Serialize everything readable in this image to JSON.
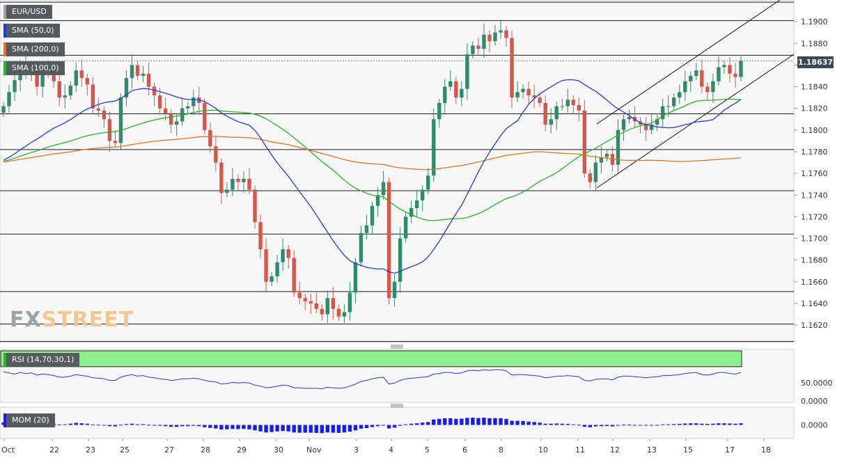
{
  "chart_data": {
    "type": "candlestick",
    "symbol": "EUR/USD",
    "indicators": [
      {
        "name": "SMA (50,0)",
        "color": "#1f3cd6"
      },
      {
        "name": "SMA (200,0)",
        "color": "#e8731f"
      },
      {
        "name": "SMA (100,0)",
        "color": "#26b526"
      }
    ],
    "rsi_label": "RSI (14,70,30,1)",
    "rsi_value_label": "50.0000",
    "rsi_zero_label": "0.0000",
    "mom_label": "MOM (20)",
    "mom_zero_label": "0.0000",
    "current_price": "1.18637",
    "price_range": [
      1.1604,
      1.192
    ],
    "price_ticks": [
      "1.1900",
      "1.1880",
      "1.1860",
      "1.1840",
      "1.1820",
      "1.1800",
      "1.1780",
      "1.1760",
      "1.1740",
      "1.1720",
      "1.1700",
      "1.1680",
      "1.1660",
      "1.1640",
      "1.1620"
    ],
    "horizontal_levels": [
      1.1918,
      1.1901,
      1.1869,
      1.1815,
      1.1782,
      1.1744,
      1.1704,
      1.1651,
      1.1621,
      1.1605
    ],
    "x_labels": [
      "Oct",
      "22",
      "23",
      "25",
      "27",
      "28",
      "29",
      "30",
      "Nov",
      "3",
      "4",
      "5",
      "6",
      "8",
      "10",
      "11",
      "12",
      "13",
      "15",
      "17",
      "18"
    ],
    "logo": {
      "part1": "FX",
      "part2": "STREET"
    },
    "colors": {
      "bull": "#2f8a6e",
      "bear": "#d6564a",
      "sma50": "#1f3cd6",
      "sma200": "#e8731f",
      "sma100": "#26b526",
      "rsi_over": "#8cf08c",
      "rsi_under": "#f58484",
      "mom": "#1a1ee0"
    },
    "closes": [
      1.1822,
      1.1835,
      1.1846,
      1.1861,
      1.1851,
      1.1853,
      1.184,
      1.1855,
      1.1852,
      1.1845,
      1.183,
      1.1832,
      1.1841,
      1.1855,
      1.1848,
      1.1842,
      1.182,
      1.1818,
      1.181,
      1.179,
      1.1788,
      1.183,
      1.1848,
      1.186,
      1.185,
      1.1852,
      1.184,
      1.1832,
      1.182,
      1.1815,
      1.1805,
      1.1808,
      1.182,
      1.1822,
      1.183,
      1.1825,
      1.18,
      1.1785,
      1.177,
      1.1742,
      1.1745,
      1.1755,
      1.1752,
      1.1755,
      1.1745,
      1.1715,
      1.169,
      1.166,
      1.1665,
      1.1678,
      1.169,
      1.1682,
      1.165,
      1.1645,
      1.1642,
      1.164,
      1.1635,
      1.163,
      1.1645,
      1.1635,
      1.1628,
      1.1632,
      1.165,
      1.1678,
      1.1705,
      1.1712,
      1.173,
      1.174,
      1.1752,
      1.1645,
      1.166,
      1.17,
      1.172,
      1.1728,
      1.1735,
      1.1745,
      1.1758,
      1.181,
      1.1825,
      1.184,
      1.1845,
      1.183,
      1.1838,
      1.187,
      1.1878,
      1.1875,
      1.1888,
      1.1882,
      1.189,
      1.1892,
      1.1885,
      1.183,
      1.1835,
      1.1838,
      1.1832,
      1.183,
      1.1825,
      1.1805,
      1.181,
      1.1822,
      1.1822,
      1.1828,
      1.1823,
      1.1818,
      1.176,
      1.1752,
      1.177,
      1.1775,
      1.1778,
      1.1768,
      1.18,
      1.181,
      1.1812,
      1.1808,
      1.1805,
      1.18,
      1.1805,
      1.181,
      1.1822,
      1.1822,
      1.183,
      1.1835,
      1.1845,
      1.185,
      1.1855,
      1.184,
      1.1835,
      1.1845,
      1.1858,
      1.186,
      1.1852,
      1.1849,
      1.1864
    ],
    "rsi": [
      68,
      66,
      64,
      67,
      65,
      66,
      62,
      64,
      63,
      61,
      58,
      58,
      60,
      63,
      61,
      60,
      57,
      56,
      55,
      52,
      52,
      58,
      61,
      63,
      60,
      61,
      58,
      57,
      55,
      54,
      52,
      53,
      55,
      55,
      56,
      55,
      52,
      50,
      49,
      45,
      46,
      48,
      47,
      48,
      47,
      43,
      41,
      38,
      39,
      41,
      43,
      42,
      38,
      38,
      37,
      37,
      37,
      36,
      39,
      38,
      37,
      38,
      41,
      45,
      50,
      52,
      55,
      57,
      58,
      45,
      47,
      52,
      55,
      56,
      57,
      58,
      59,
      64,
      65,
      67,
      67,
      65,
      66,
      70,
      71,
      70,
      72,
      71,
      72,
      72,
      70,
      62,
      63,
      63,
      62,
      61,
      60,
      57,
      58,
      60,
      60,
      61,
      60,
      59,
      52,
      51,
      54,
      55,
      55,
      53,
      58,
      60,
      60,
      59,
      58,
      57,
      58,
      59,
      61,
      61,
      62,
      63,
      65,
      66,
      67,
      63,
      62,
      64,
      67,
      67,
      65,
      64,
      67
    ],
    "mom": [
      0.0012,
      0.0016,
      0.0022,
      0.0026,
      0.0019,
      0.0016,
      0.001,
      0.0012,
      0.0009,
      0.0006,
      0.0002,
      0.0003,
      0.0006,
      0.001,
      0.0008,
      0.0006,
      0.0002,
      0.0001,
      -0.0002,
      -0.0006,
      -0.0007,
      0.0001,
      0.0004,
      0.0006,
      0.0003,
      0.0004,
      0.0001,
      -0.0001,
      -0.0004,
      -0.0006,
      -0.0009,
      -0.0009,
      -0.0006,
      -0.0006,
      -0.0004,
      -0.0006,
      -0.0011,
      -0.0014,
      -0.0017,
      -0.0022,
      -0.0021,
      -0.0019,
      -0.002,
      -0.0019,
      -0.0021,
      -0.0026,
      -0.0031,
      -0.0036,
      -0.0034,
      -0.0031,
      -0.0029,
      -0.0031,
      -0.0036,
      -0.0037,
      -0.0037,
      -0.0037,
      -0.0038,
      -0.0039,
      -0.0036,
      -0.0037,
      -0.0038,
      -0.0036,
      -0.0032,
      -0.0026,
      -0.0018,
      -0.0015,
      -0.001,
      -0.0006,
      -0.0001,
      -0.0017,
      -0.0013,
      -0.0004,
      0.0003,
      0.0006,
      0.0008,
      0.0011,
      0.0014,
      0.0026,
      0.0029,
      0.0032,
      0.0032,
      0.0029,
      0.003,
      0.0034,
      0.0035,
      0.0033,
      0.0035,
      0.0032,
      0.0033,
      0.0032,
      0.0029,
      0.002,
      0.002,
      0.0019,
      0.0016,
      0.0014,
      0.0011,
      0.0006,
      0.0006,
      0.0007,
      0.0006,
      0.0005,
      0.0003,
      0.0001,
      -0.0009,
      -0.0011,
      -0.0007,
      -0.0006,
      -0.0005,
      -0.0007,
      -0.0001,
      0.0001,
      0.0001,
      0.0,
      -0.0001,
      -0.0002,
      -0.0001,
      0.0,
      0.0003,
      0.0003,
      0.0004,
      0.0005,
      0.0007,
      0.0008,
      0.0008,
      0.0006,
      0.0005,
      0.0006,
      0.0008,
      0.0008,
      0.0007,
      0.0006,
      0.0008
    ]
  }
}
